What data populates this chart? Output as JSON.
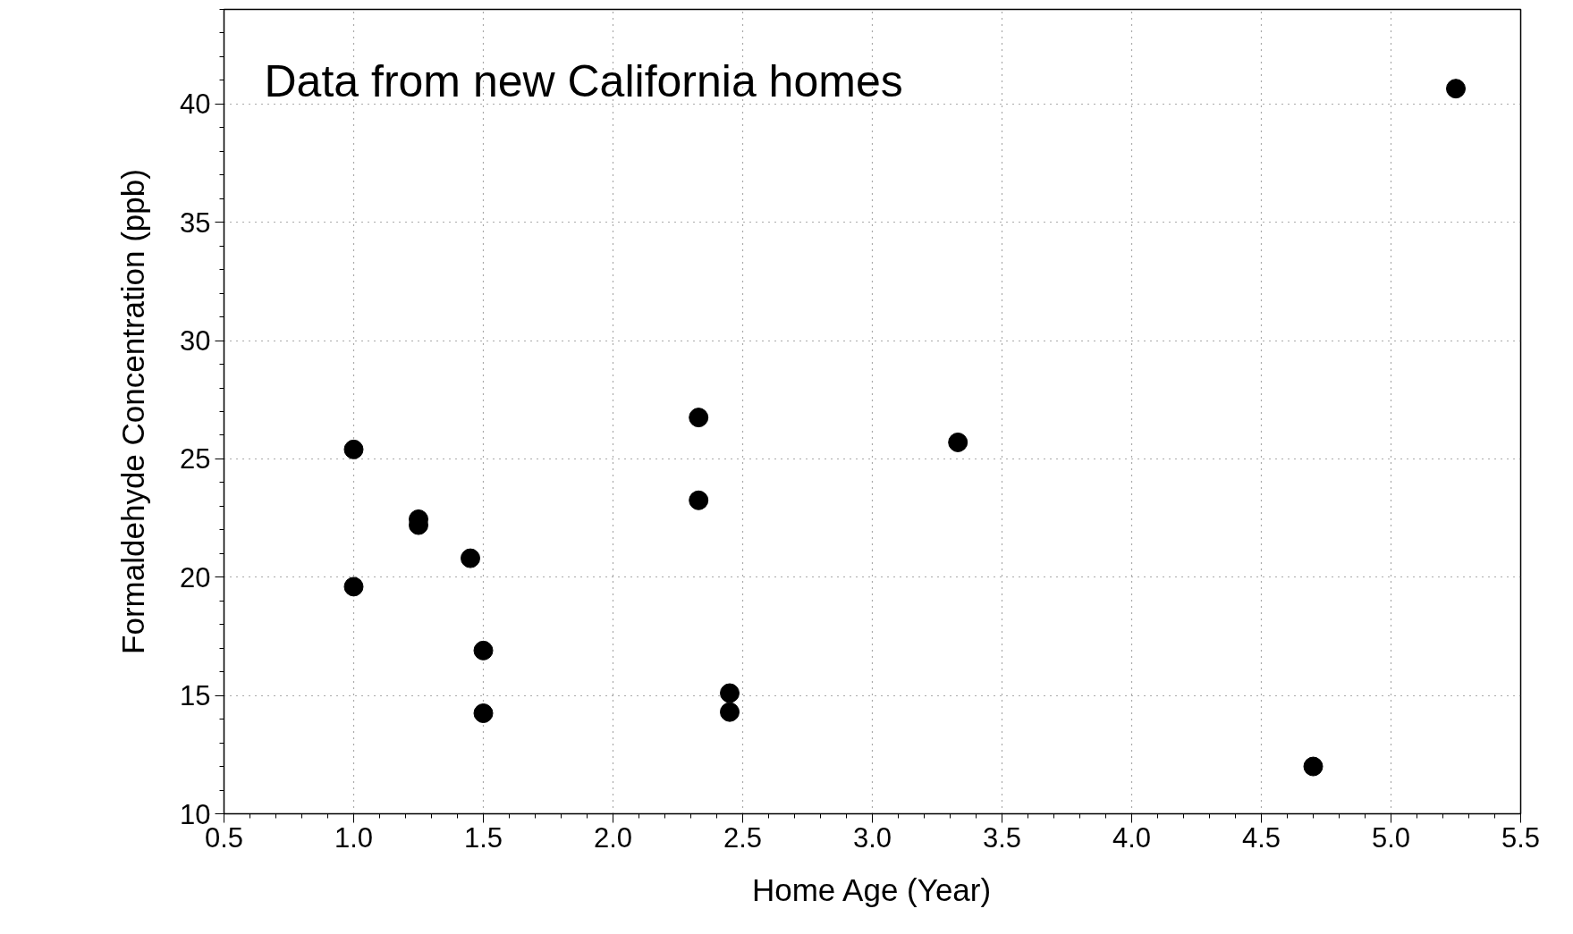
{
  "chart_data": {
    "type": "scatter",
    "xlabel": "Home Age (Year)",
    "ylabel": "Formaldehyde Concentration (ppb)",
    "annotations": [
      "Data from new California homes"
    ],
    "series": [
      {
        "color": "#000000",
        "x": [
          1.0,
          1.0,
          1.25,
          1.25,
          1.45,
          1.5,
          1.5,
          2.33,
          2.33,
          2.45,
          2.45,
          3.33,
          4.7,
          5.25
        ],
        "values": [
          25.4,
          19.6,
          22.45,
          22.2,
          20.8,
          16.9,
          14.25,
          26.75,
          23.25,
          15.1,
          14.3,
          25.7,
          12.0,
          40.65
        ]
      }
    ],
    "xlim": [
      0.5,
      5.5
    ],
    "ylim": [
      10,
      44
    ],
    "xticks": [
      {
        "value": 0.5,
        "label": "0.5"
      },
      {
        "value": 1.0,
        "label": "1.0"
      },
      {
        "value": 1.5,
        "label": "1.5"
      },
      {
        "value": 2.0,
        "label": "2.0"
      },
      {
        "value": 2.5,
        "label": "2.5"
      },
      {
        "value": 3.0,
        "label": "3.0"
      },
      {
        "value": 3.5,
        "label": "3.5"
      },
      {
        "value": 4.0,
        "label": "4.0"
      },
      {
        "value": 4.5,
        "label": "4.5"
      },
      {
        "value": 5.0,
        "label": "5.0"
      },
      {
        "value": 5.5,
        "label": "5.5"
      }
    ],
    "yticks": [
      10,
      15,
      20,
      25,
      30,
      35,
      40
    ],
    "grid": true,
    "marker": "circle"
  }
}
